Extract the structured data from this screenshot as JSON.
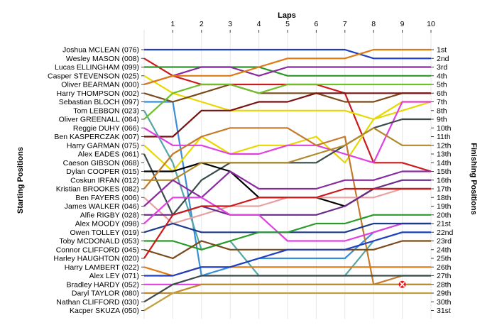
{
  "chart_data": {
    "type": "line",
    "title": "Laps",
    "ylabel_left": "Starting Positions",
    "ylabel_right": "Finishing Positions",
    "x": [
      0,
      1,
      2,
      3,
      4,
      5,
      6,
      7,
      8,
      9,
      10
    ],
    "x_tick_labels": [
      "1",
      "2",
      "3",
      "4",
      "5",
      "6",
      "7",
      "8",
      "9",
      "10"
    ],
    "x_range": [
      0,
      10
    ],
    "y_range": [
      1,
      31
    ],
    "y_inverted": true,
    "grid": "vertical",
    "start_labels": [
      "Joshua MCLEAN (076)",
      "Wesley MASON (008)",
      "Lucas ELLINGHAM (099)",
      "Casper STEVENSON (025)",
      "Oliver BEARMAN (000)",
      "Harry THOMPSON (002)",
      "Sebastian BLOCH (097)",
      "Tom LEBBON (023)",
      "Oliver GREENALL (064)",
      "Reggie DUHY (066)",
      "Ben KASPERCZAK (007)",
      "Harry GARMAN (075)",
      "Alex EADES (061)",
      "Caeson GIBSON (068)",
      "Dylan COOPER (015)",
      "Coskun IRFAN (012)",
      "Kristian BROOKES (082)",
      "Ben FAYERS (006)",
      "James WALKER (046)",
      "Alfie RIGBY (028)",
      "Alex MOODY (098)",
      "Owen TOLLEY (019)",
      "Toby MCDONALD (053)",
      "Connor CLIFFORD (045)",
      "Harley HAUGHTON (020)",
      "Harry LAMBERT (022)",
      "Alex LEY (071)",
      "Bradley HARDY (052)",
      "Daryl TAYLOR (080)",
      "Nathan CLIFFORD (030)",
      "Kacper SKUZA (050)"
    ],
    "finish_labels": [
      "1st",
      "2nd",
      "3rd",
      "4th",
      "5th",
      "6th",
      "7th",
      "8th",
      "9th",
      "10th",
      "11th",
      "12th",
      "13th",
      "14th",
      "15th",
      "16th",
      "17th",
      "18th",
      "19th",
      "20th",
      "21st",
      "22nd",
      "23rd",
      "24th",
      "25th",
      "26th",
      "27th",
      "28th",
      "29th",
      "30th",
      "31st"
    ],
    "series": [
      {
        "color": "#1f3fbf",
        "positions": [
          1,
          1,
          1,
          1,
          1,
          1,
          1,
          1,
          2,
          2,
          2
        ]
      },
      {
        "color": "#cc1a1a",
        "positions": [
          2,
          4,
          5,
          5,
          5,
          5,
          5,
          6,
          14,
          14,
          15
        ]
      },
      {
        "color": "#2a9a2a",
        "positions": [
          3,
          3,
          3,
          3,
          3,
          4,
          4,
          4,
          4,
          4,
          4
        ]
      },
      {
        "color": "#e8d800",
        "positions": [
          4,
          6,
          7,
          8,
          8,
          8,
          8,
          8,
          9,
          8,
          7
        ]
      },
      {
        "color": "#8a2aa0",
        "positions": [
          5,
          4,
          3,
          3,
          4,
          3,
          3,
          3,
          3,
          3,
          3
        ]
      },
      {
        "color": "#e07a10",
        "positions": [
          5,
          4,
          4,
          4,
          3,
          2,
          2,
          2,
          1,
          1,
          1
        ]
      },
      {
        "color": "#3a8ed8",
        "positions": [
          7,
          7,
          27,
          26,
          25,
          25,
          25,
          25,
          22,
          21,
          21
        ]
      },
      {
        "color": "#7a4a1a",
        "positions": [
          6,
          7,
          6,
          5,
          6,
          6,
          6,
          7,
          7,
          6,
          6
        ]
      },
      {
        "color": "#55a6a6",
        "positions": [
          8,
          14,
          24,
          23,
          27,
          27,
          27,
          27,
          23,
          22,
          22
        ]
      },
      {
        "color": "#6ec02a",
        "positions": [
          9,
          6,
          5,
          5,
          6,
          5,
          5,
          5,
          5,
          5,
          5
        ]
      },
      {
        "color": "#7a1010",
        "positions": [
          11,
          11,
          8,
          8,
          7,
          7,
          6,
          6,
          6,
          6,
          6
        ]
      },
      {
        "color": "#e8d800",
        "positions": [
          12,
          15,
          11,
          13,
          12,
          12,
          11,
          14,
          9,
          7,
          7
        ]
      },
      {
        "color": "#e040e0",
        "positions": [
          10,
          12,
          12,
          13,
          13,
          12,
          12,
          13,
          14,
          7,
          7
        ]
      },
      {
        "color": "#3a4a4a",
        "positions": [
          13,
          20,
          16,
          14,
          14,
          14,
          14,
          12,
          10,
          9,
          9
        ]
      },
      {
        "color": "#000000",
        "positions": [
          15,
          15,
          14,
          15,
          18,
          18,
          18,
          19,
          17,
          17,
          17
        ]
      },
      {
        "color": "#b08a2a",
        "positions": [
          16,
          16,
          14,
          14,
          14,
          14,
          13,
          12,
          10,
          12,
          12
        ]
      },
      {
        "color": "#c47a2a",
        "positions": [
          17,
          13,
          11,
          10,
          10,
          10,
          12,
          11,
          28,
          27,
          27
        ]
      },
      {
        "color": "#e8a0a0",
        "positions": [
          18,
          21,
          20,
          19,
          19,
          18,
          18,
          18,
          18,
          17,
          17
        ]
      },
      {
        "color": "#8a2aa0",
        "positions": [
          19,
          16,
          18,
          15,
          17,
          17,
          17,
          16,
          16,
          15,
          15
        ]
      },
      {
        "color": "#6a2a8a",
        "positions": [
          20,
          20,
          19,
          20,
          20,
          20,
          20,
          19,
          17,
          16,
          16
        ]
      },
      {
        "color": "#e040e0",
        "positions": [
          21,
          18,
          18,
          20,
          20,
          23,
          23,
          23,
          22,
          21,
          21
        ]
      },
      {
        "color": "#1a3a8a",
        "positions": [
          22,
          21,
          22,
          22,
          22,
          22,
          22,
          22,
          21,
          21,
          21
        ]
      },
      {
        "color": "#2a9a2a",
        "positions": [
          23,
          23,
          24,
          23,
          22,
          22,
          21,
          21,
          20,
          20,
          20
        ]
      },
      {
        "color": "#7a4a1a",
        "positions": [
          24,
          25,
          23,
          24,
          24,
          24,
          24,
          24,
          24,
          23,
          23
        ]
      },
      {
        "color": "#cc1a1a",
        "positions": [
          25,
          20,
          19,
          19,
          18,
          18,
          18,
          17,
          17,
          17,
          17
        ]
      },
      {
        "color": "#e07a10",
        "positions": [
          26,
          27,
          26,
          26,
          26,
          26,
          26,
          26,
          26,
          26,
          26
        ]
      },
      {
        "color": "#1f3fbf",
        "positions": [
          27,
          27,
          26,
          26,
          25,
          24,
          24,
          24,
          23,
          22,
          22
        ]
      },
      {
        "color": "#e040e0",
        "positions": [
          28,
          28,
          28,
          28,
          28,
          28,
          28,
          28,
          28,
          28,
          28
        ]
      },
      {
        "color": "#c08a2a",
        "positions": [
          29,
          29,
          28,
          28,
          28,
          28,
          28,
          28,
          28,
          28,
          28
        ]
      },
      {
        "color": "#3a4a4a",
        "positions": [
          30,
          28,
          27,
          27,
          27,
          27,
          27,
          27,
          27,
          27,
          27
        ]
      },
      {
        "color": "#c0a040",
        "positions": [
          31,
          29,
          29,
          29,
          29,
          29,
          29,
          29,
          29,
          29,
          29
        ]
      }
    ],
    "markers": [
      {
        "type": "retired",
        "x": 9,
        "y": 28,
        "color": "#e01a1a"
      }
    ]
  }
}
